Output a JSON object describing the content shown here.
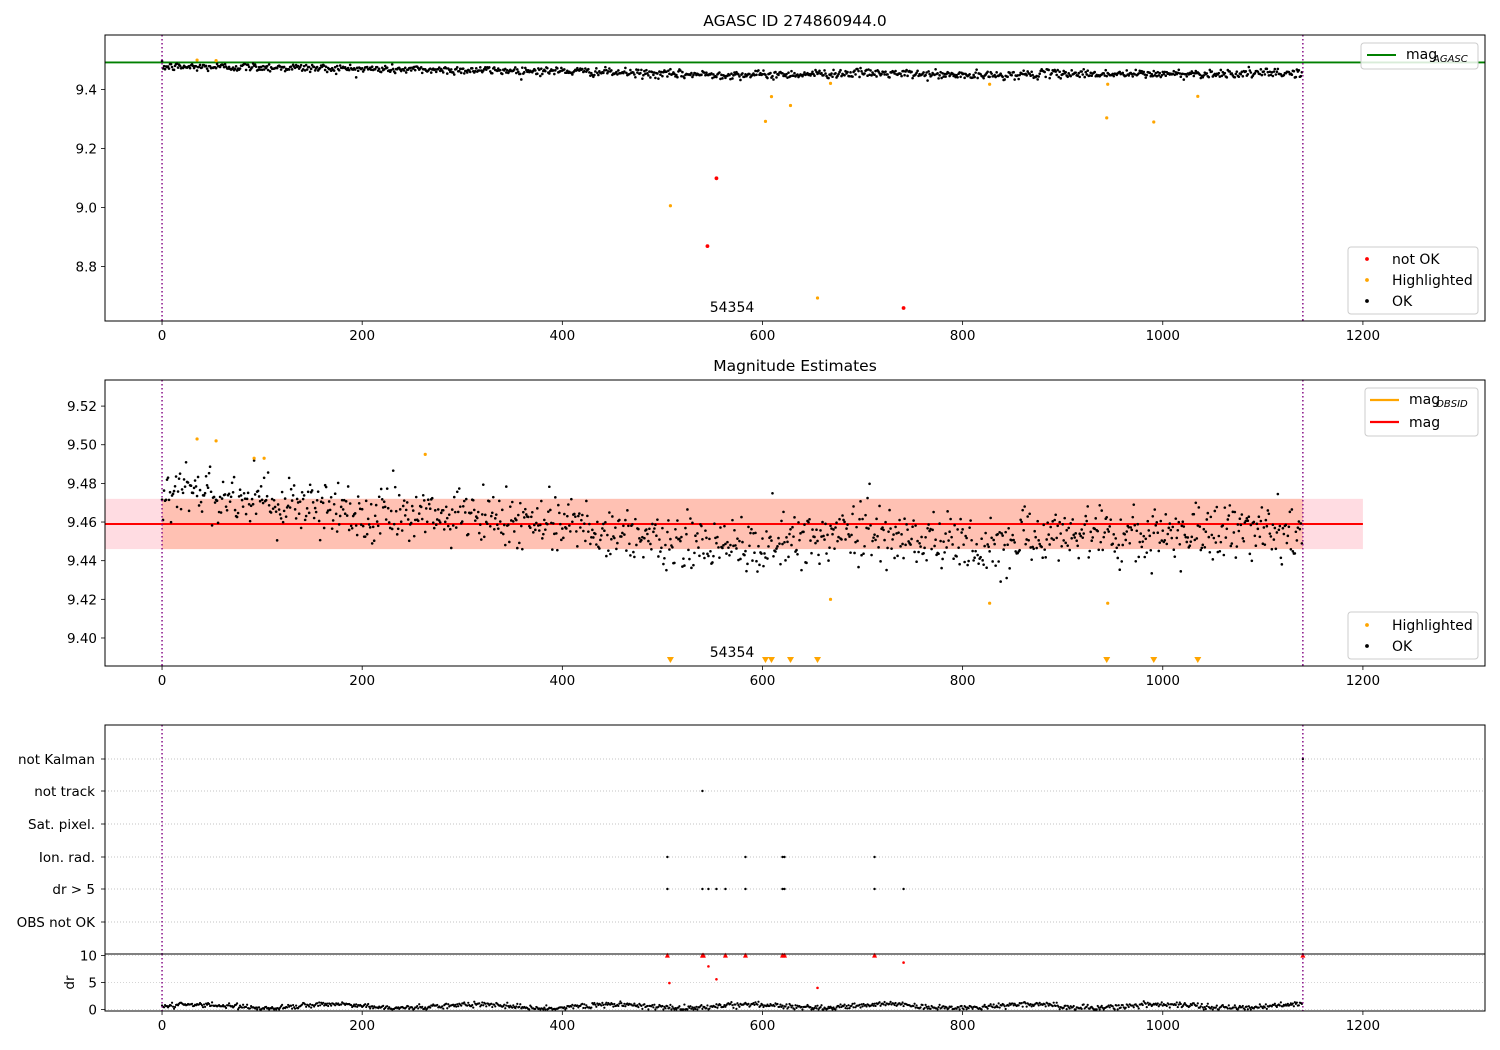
{
  "chart_data": [
    {
      "type": "scatter",
      "title": "AGASC ID 274860944.0",
      "xlim": [
        -57,
        1322
      ],
      "ylim": [
        8.615,
        9.585
      ],
      "xticks": [
        0,
        200,
        400,
        600,
        800,
        1000,
        1200
      ],
      "yticks": [
        8.8,
        9.0,
        9.2,
        9.4
      ],
      "grid": false,
      "annotation": "54354",
      "vlines": [
        0,
        1140
      ],
      "hline": {
        "name": "mag",
        "subscript": "AGASC",
        "value": 9.492,
        "color": "#008000"
      },
      "legend_upper": "top-right",
      "legend_lower": "bottom-right",
      "series": [
        {
          "name": "not OK",
          "color": "#ff0000",
          "points": [
            [
              554,
              9.099
            ],
            [
              545,
              8.869
            ],
            [
              741,
              8.659
            ]
          ]
        },
        {
          "name": "Highlighted",
          "color": "#ffa500",
          "points": [
            [
              35,
              9.5
            ],
            [
              54,
              9.498
            ],
            [
              508,
              9.006
            ],
            [
              603,
              9.292
            ],
            [
              609,
              9.376
            ],
            [
              628,
              9.346
            ],
            [
              655,
              8.693
            ],
            [
              668,
              9.421
            ],
            [
              827,
              9.418
            ],
            [
              944,
              9.304
            ],
            [
              945,
              9.418
            ],
            [
              991,
              9.29
            ],
            [
              1035,
              9.377
            ]
          ]
        },
        {
          "name": "OK",
          "color": "#000000",
          "trend": [
            [
              0,
              9.477
            ],
            [
              100,
              9.476
            ],
            [
              200,
              9.47
            ],
            [
              300,
              9.466
            ],
            [
              400,
              9.463
            ],
            [
              470,
              9.456
            ],
            [
              500,
              9.452
            ],
            [
              600,
              9.45
            ],
            [
              700,
              9.456
            ],
            [
              820,
              9.447
            ],
            [
              900,
              9.455
            ],
            [
              950,
              9.452
            ],
            [
              1000,
              9.453
            ],
            [
              1140,
              9.456
            ]
          ],
          "spread": 0.013,
          "count": 1140
        }
      ]
    },
    {
      "type": "scatter",
      "title": "Magnitude Estimates",
      "xlim": [
        -57,
        1322
      ],
      "ylim": [
        9.3855,
        9.5335
      ],
      "xticks": [
        0,
        200,
        400,
        600,
        800,
        1000,
        1200
      ],
      "yticks": [
        9.4,
        9.42,
        9.44,
        9.46,
        9.48,
        9.5,
        9.52
      ],
      "grid": false,
      "annotation": "54354",
      "vlines": [
        0,
        1140
      ],
      "mag_obsid_line": {
        "name": "mag",
        "subscript": "OBSID",
        "color": "#ffa500",
        "segments": [
          [
            0,
            1140,
            9.459
          ]
        ]
      },
      "mag_line": {
        "name": "mag",
        "color": "#ff0000",
        "value": 9.459,
        "x_range": [
          -57,
          1200
        ]
      },
      "band": {
        "lower": 9.446,
        "upper": 9.472,
        "x_range": [
          -57,
          1200
        ]
      },
      "obsid_band": {
        "lower": 9.446,
        "upper": 9.472,
        "x_range": [
          0,
          1140
        ]
      },
      "legend_upper": "top-right",
      "legend_lower": "bottom-right",
      "series": [
        {
          "name": "Highlighted",
          "color": "#ffa500",
          "points": [
            [
              35,
              9.503
            ],
            [
              54,
              9.502
            ],
            [
              92,
              9.493
            ],
            [
              102,
              9.493
            ],
            [
              263,
              9.495
            ],
            [
              668,
              9.42
            ],
            [
              827,
              9.418
            ],
            [
              945,
              9.418
            ]
          ]
        },
        {
          "name": "OK",
          "color": "#000000",
          "trend": [
            [
              0,
              9.477
            ],
            [
              100,
              9.472
            ],
            [
              200,
              9.464
            ],
            [
              300,
              9.462
            ],
            [
              400,
              9.461
            ],
            [
              470,
              9.452
            ],
            [
              500,
              9.449
            ],
            [
              600,
              9.447
            ],
            [
              700,
              9.456
            ],
            [
              820,
              9.447
            ],
            [
              900,
              9.455
            ],
            [
              950,
              9.452
            ],
            [
              1000,
              9.453
            ],
            [
              1140,
              9.456
            ]
          ],
          "spread": 0.013,
          "count": 1140
        }
      ],
      "clipped_low_markers": [
        508,
        603,
        609,
        628,
        655,
        944,
        991,
        1035
      ]
    },
    {
      "type": "scatter",
      "title": "",
      "xlim": [
        -57,
        1322
      ],
      "xticks": [
        0,
        200,
        400,
        600,
        800,
        1000,
        1200
      ],
      "vlines": [
        0,
        1140
      ],
      "flag_rows": [
        "not Kalman",
        "not track",
        "Sat. pixel.",
        "Ion. rad.",
        "dr > 5",
        "OBS not OK"
      ],
      "flags": {
        "not Kalman": [
          1140
        ],
        "not track": [
          540
        ],
        "Sat. pixel.": [],
        "Ion. rad.": [
          505,
          583,
          620,
          622,
          712
        ],
        "dr > 5": [
          505,
          540,
          546,
          554,
          563,
          583,
          620,
          622,
          712,
          741
        ],
        "OBS not OK": []
      },
      "grid": "horizontal dotted"
    },
    {
      "type": "scatter",
      "title": "",
      "ylabel": "dr",
      "xlim": [
        -57,
        1322
      ],
      "ylim": [
        -0.3,
        10.3
      ],
      "yticks": [
        0,
        5,
        10
      ],
      "xticks": [
        0,
        200,
        400,
        600,
        800,
        1000,
        1200
      ],
      "vlines": [
        0,
        1140
      ],
      "series": [
        {
          "name": "OK",
          "color": "#000000",
          "baseline": 0.6,
          "spread": 0.25,
          "count": 1140
        },
        {
          "name": "not OK",
          "color": "#ff0000",
          "points": [
            [
              505,
              10
            ],
            [
              540,
              10
            ],
            [
              541,
              10
            ],
            [
              563,
              10
            ],
            [
              583,
              10
            ],
            [
              620,
              10
            ],
            [
              622,
              10
            ],
            [
              712,
              10
            ],
            [
              1140,
              10
            ],
            [
              507,
              4.9
            ],
            [
              546,
              8.0
            ],
            [
              554,
              5.6
            ],
            [
              655,
              4.0
            ],
            [
              741,
              8.7
            ]
          ]
        }
      ]
    }
  ]
}
